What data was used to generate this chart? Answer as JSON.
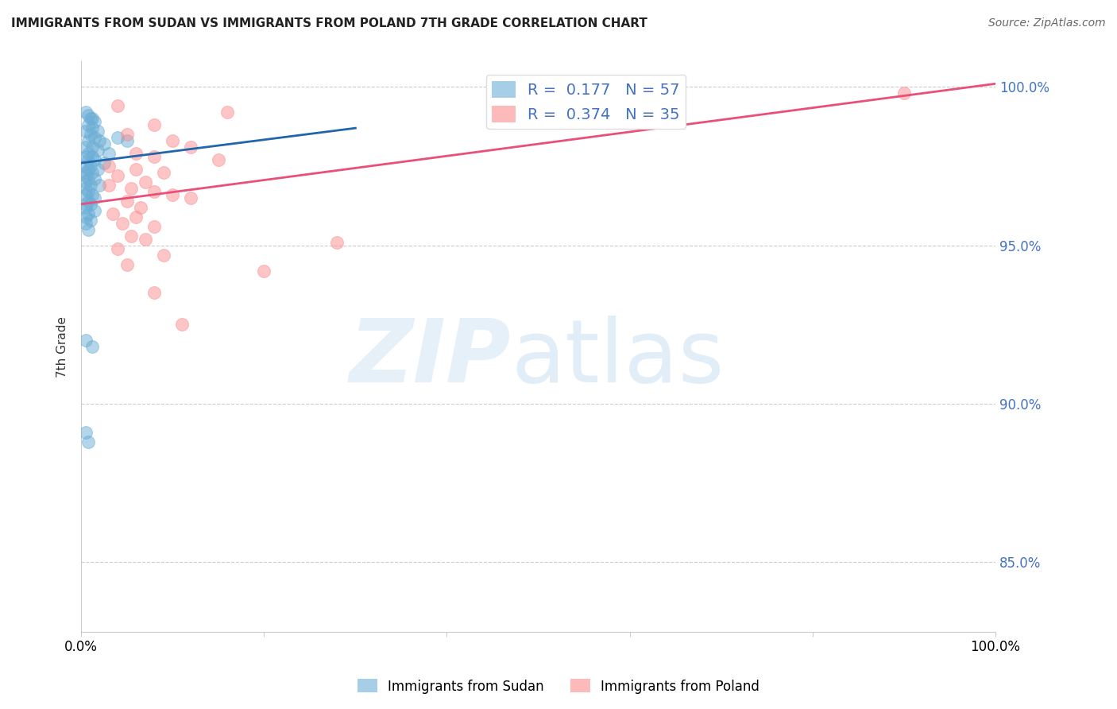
{
  "title": "IMMIGRANTS FROM SUDAN VS IMMIGRANTS FROM POLAND 7TH GRADE CORRELATION CHART",
  "source": "Source: ZipAtlas.com",
  "xlabel": "",
  "ylabel": "7th Grade",
  "xlim": [
    0.0,
    1.0
  ],
  "ylim": [
    0.828,
    1.008
  ],
  "right_yticks": [
    0.85,
    0.9,
    0.95,
    1.0
  ],
  "right_labels": [
    "85.0%",
    "90.0%",
    "95.0%",
    "100.0%"
  ],
  "legend_label1": "Immigrants from Sudan",
  "legend_label2": "Immigrants from Poland",
  "R1": 0.177,
  "N1": 57,
  "R2": 0.374,
  "N2": 35,
  "color_sudan": "#6baed6",
  "color_poland": "#fc8d8d",
  "color_sudan_line": "#2166ac",
  "color_poland_line": "#e8507a",
  "background_color": "#ffffff",
  "grid_color": "#cccccc",
  "sudan_points": [
    [
      0.005,
      0.992
    ],
    [
      0.008,
      0.991
    ],
    [
      0.01,
      0.99
    ],
    [
      0.012,
      0.99
    ],
    [
      0.015,
      0.989
    ],
    [
      0.008,
      0.988
    ],
    [
      0.012,
      0.987
    ],
    [
      0.018,
      0.986
    ],
    [
      0.005,
      0.986
    ],
    [
      0.01,
      0.985
    ],
    [
      0.015,
      0.984
    ],
    [
      0.02,
      0.983
    ],
    [
      0.008,
      0.983
    ],
    [
      0.025,
      0.982
    ],
    [
      0.012,
      0.981
    ],
    [
      0.005,
      0.981
    ],
    [
      0.018,
      0.98
    ],
    [
      0.008,
      0.979
    ],
    [
      0.03,
      0.979
    ],
    [
      0.012,
      0.978
    ],
    [
      0.005,
      0.978
    ],
    [
      0.015,
      0.977
    ],
    [
      0.008,
      0.977
    ],
    [
      0.025,
      0.976
    ],
    [
      0.005,
      0.975
    ],
    [
      0.01,
      0.975
    ],
    [
      0.018,
      0.974
    ],
    [
      0.008,
      0.974
    ],
    [
      0.005,
      0.973
    ],
    [
      0.012,
      0.973
    ],
    [
      0.005,
      0.972
    ],
    [
      0.008,
      0.971
    ],
    [
      0.015,
      0.971
    ],
    [
      0.005,
      0.97
    ],
    [
      0.01,
      0.969
    ],
    [
      0.02,
      0.969
    ],
    [
      0.005,
      0.968
    ],
    [
      0.008,
      0.967
    ],
    [
      0.012,
      0.966
    ],
    [
      0.005,
      0.966
    ],
    [
      0.015,
      0.965
    ],
    [
      0.008,
      0.964
    ],
    [
      0.005,
      0.963
    ],
    [
      0.01,
      0.963
    ],
    [
      0.005,
      0.962
    ],
    [
      0.015,
      0.961
    ],
    [
      0.008,
      0.96
    ],
    [
      0.005,
      0.959
    ],
    [
      0.01,
      0.958
    ],
    [
      0.005,
      0.957
    ],
    [
      0.008,
      0.955
    ],
    [
      0.005,
      0.92
    ],
    [
      0.012,
      0.918
    ],
    [
      0.005,
      0.891
    ],
    [
      0.008,
      0.888
    ],
    [
      0.04,
      0.984
    ],
    [
      0.05,
      0.983
    ]
  ],
  "poland_points": [
    [
      0.04,
      0.994
    ],
    [
      0.16,
      0.992
    ],
    [
      0.08,
      0.988
    ],
    [
      0.05,
      0.985
    ],
    [
      0.1,
      0.983
    ],
    [
      0.12,
      0.981
    ],
    [
      0.06,
      0.979
    ],
    [
      0.08,
      0.978
    ],
    [
      0.15,
      0.977
    ],
    [
      0.03,
      0.975
    ],
    [
      0.06,
      0.974
    ],
    [
      0.09,
      0.973
    ],
    [
      0.04,
      0.972
    ],
    [
      0.07,
      0.97
    ],
    [
      0.03,
      0.969
    ],
    [
      0.055,
      0.968
    ],
    [
      0.08,
      0.967
    ],
    [
      0.1,
      0.966
    ],
    [
      0.12,
      0.965
    ],
    [
      0.05,
      0.964
    ],
    [
      0.065,
      0.962
    ],
    [
      0.035,
      0.96
    ],
    [
      0.06,
      0.959
    ],
    [
      0.045,
      0.957
    ],
    [
      0.08,
      0.956
    ],
    [
      0.055,
      0.953
    ],
    [
      0.07,
      0.952
    ],
    [
      0.04,
      0.949
    ],
    [
      0.09,
      0.947
    ],
    [
      0.05,
      0.944
    ],
    [
      0.2,
      0.942
    ],
    [
      0.08,
      0.935
    ],
    [
      0.11,
      0.925
    ],
    [
      0.9,
      0.998
    ],
    [
      0.28,
      0.951
    ]
  ],
  "sudan_trendline": [
    [
      0.0,
      0.976
    ],
    [
      0.3,
      0.987
    ]
  ],
  "poland_trendline": [
    [
      0.0,
      0.963
    ],
    [
      1.0,
      1.001
    ]
  ]
}
